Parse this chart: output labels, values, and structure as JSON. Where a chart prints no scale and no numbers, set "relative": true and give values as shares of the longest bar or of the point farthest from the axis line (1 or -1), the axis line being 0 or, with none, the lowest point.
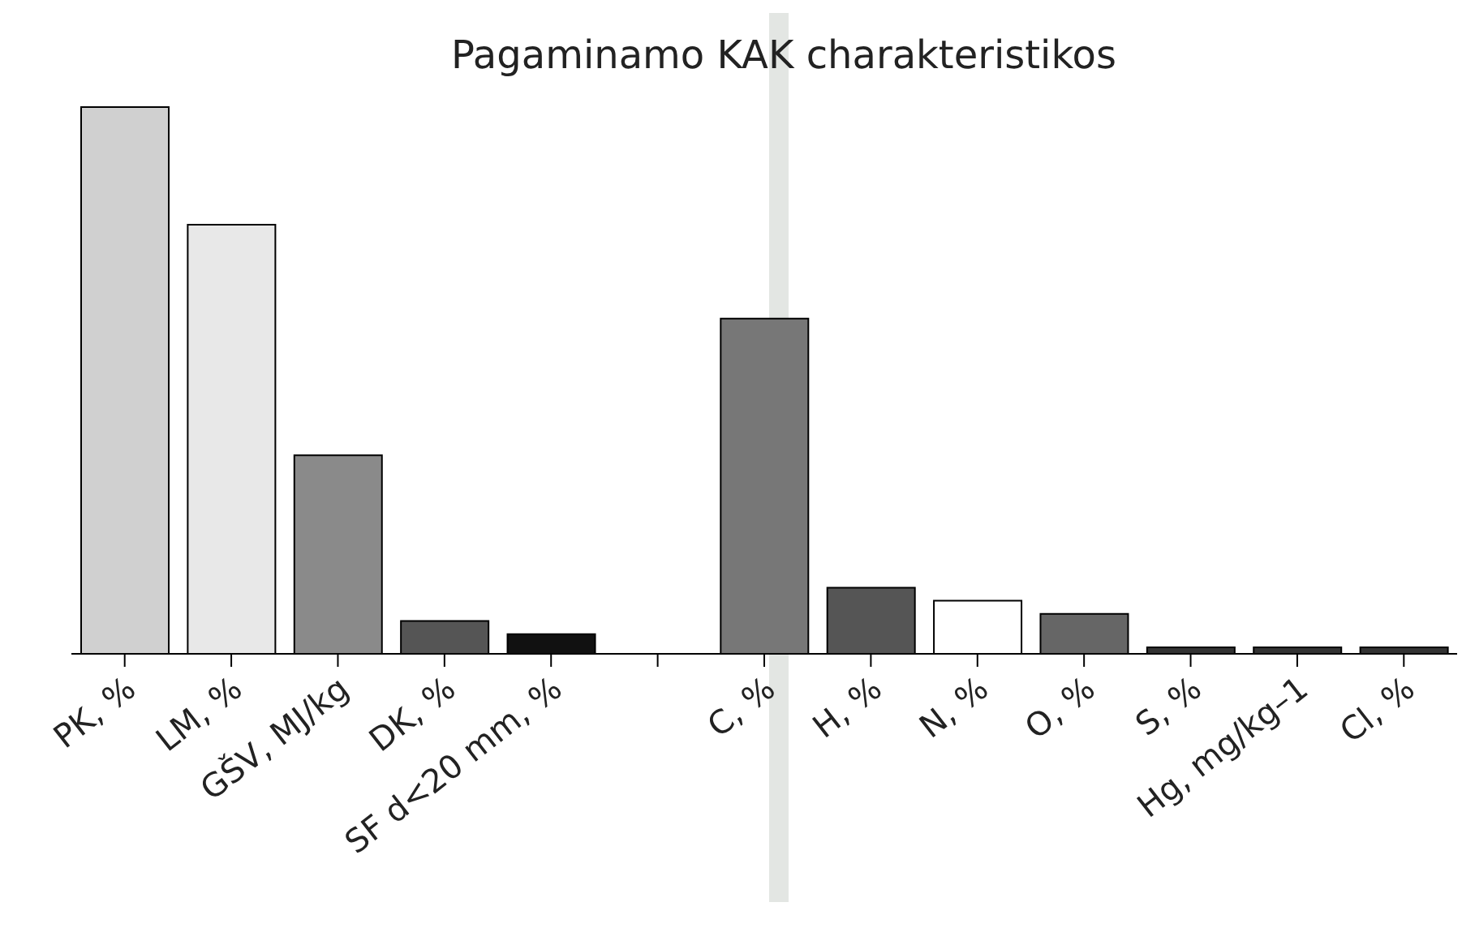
{
  "chart_data": {
    "type": "bar",
    "title": "Pagaminamo KAK charakteristikos",
    "relative": true,
    "categories": [
      "PK, %",
      "LM, %",
      "GŠV, MJ/kg",
      "DK, %",
      "SF d<20 mm, %",
      null,
      "C, %",
      "H, %",
      "N, %",
      "O, %",
      "S, %",
      "Hg, mg/kg–1",
      "Cl, %"
    ],
    "values": [
      1,
      0.785,
      0.363,
      0.06,
      0.036,
      null,
      0.613,
      0.121,
      0.097,
      0.073,
      0.012,
      0.012,
      0.012
    ],
    "colors": [
      "#d0d0d0",
      "#e8e8e8",
      "#8a8a8a",
      "#555555",
      "#111111",
      "#ffffff",
      "#777777",
      "#555555",
      "#ffffff",
      "#666666",
      "#333333",
      "#333333",
      "#333333"
    ],
    "grid": false,
    "legend": false
  }
}
